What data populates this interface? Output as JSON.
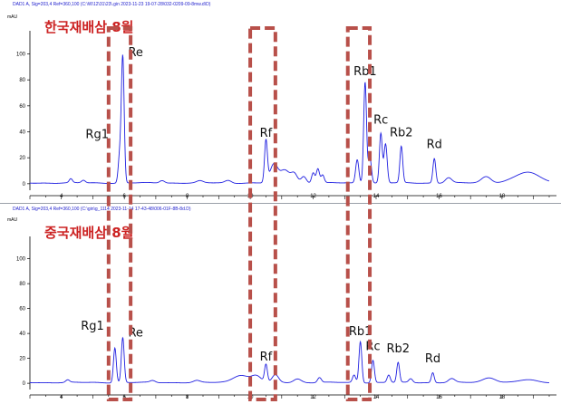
{
  "colors": {
    "trace": "#1f1fe0",
    "axis": "#000000",
    "header_text": "#1a1acc",
    "title": "#cc2222",
    "highlight_box": "#b8504a"
  },
  "chart_data": [
    {
      "type": "line",
      "title": "한국재배삼 8월",
      "header": "DAD1 A, Sig=203,4 Ref=360,100 (C:\\W\\12\\31\\23\\.gin 2023-11-23 19-07-28\\032-0209-09-8mw.d\\D)",
      "ylabel": "mAU",
      "xlim": [
        3,
        19.5
      ],
      "ylim": [
        -5,
        115
      ],
      "x_ticks": [
        4,
        6,
        8,
        10,
        12,
        14,
        16,
        18
      ],
      "y_ticks": [
        0,
        20,
        40,
        60,
        80,
        100
      ],
      "peaks": [
        {
          "name": "Rg1",
          "rt": 5.85,
          "height": 20
        },
        {
          "name": "Re",
          "rt": 5.95,
          "height": 97
        },
        {
          "name": "Rf",
          "rt": 10.5,
          "height": 32
        },
        {
          "name": "Rb1",
          "rt": 13.65,
          "height": 78
        },
        {
          "name": "Rc",
          "rt": 14.15,
          "height": 38
        },
        {
          "name": "Rb2",
          "rt": 14.8,
          "height": 28
        },
        {
          "name": "Rd",
          "rt": 15.85,
          "height": 19
        }
      ]
    },
    {
      "type": "line",
      "title": "중국재배삼 8월",
      "header": "DAD1 A, Sig=203,4 Ref=360,100 (C:\\gin\\g_1114 2023-11-14 17-43-48\\006-01F-8B-8d.D)",
      "ylabel": "mAU",
      "xlim": [
        3,
        19.5
      ],
      "ylim": [
        -5,
        115
      ],
      "x_ticks": [
        4,
        6,
        8,
        10,
        12,
        14,
        16,
        18
      ],
      "y_ticks": [
        0,
        20,
        40,
        60,
        80,
        100
      ],
      "peaks": [
        {
          "name": "Rg1",
          "rt": 5.7,
          "height": 28
        },
        {
          "name": "Re",
          "rt": 5.95,
          "height": 36
        },
        {
          "name": "Rf",
          "rt": 10.5,
          "height": 14
        },
        {
          "name": "Rb1",
          "rt": 13.5,
          "height": 33
        },
        {
          "name": "Rc",
          "rt": 13.9,
          "height": 18
        },
        {
          "name": "Rb2",
          "rt": 14.7,
          "height": 16
        },
        {
          "name": "Rd",
          "rt": 15.8,
          "height": 8
        }
      ]
    }
  ],
  "highlight_regions": [
    {
      "name": "Rg1-Re region",
      "x_range": [
        5.5,
        6.2
      ]
    },
    {
      "name": "Rf region",
      "x_range": [
        10.0,
        10.8
      ]
    },
    {
      "name": "Rb1 region",
      "x_range": [
        13.1,
        13.8
      ]
    }
  ]
}
